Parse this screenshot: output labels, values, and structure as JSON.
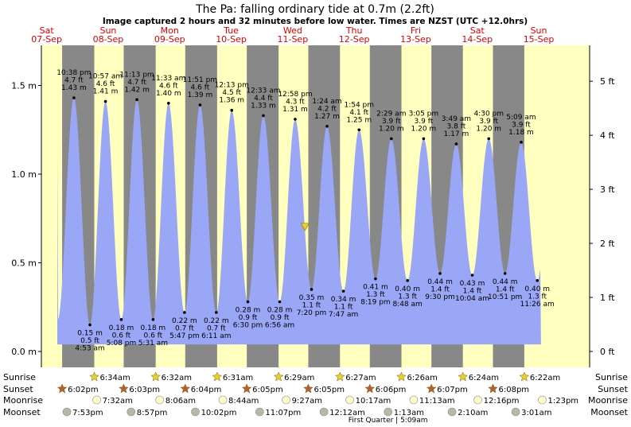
{
  "header": {
    "title": "The Pa: falling  ordinary tide at 0.7m (2.2ft)",
    "subtitle": "Image captured 2 hours and 32 minutes before low water. Times are NZST (UTC +12.0hrs)"
  },
  "chart_data": {
    "type": "area",
    "title": "The Pa: falling  ordinary tide at 0.7m (2.2ft)",
    "xlabel": "",
    "ylabel": "",
    "y_left_unit": "m",
    "y_right_unit": "ft",
    "ylim_m": [
      -0.05,
      1.72
    ],
    "y_left_ticks": [
      {
        "v": 0.0,
        "label": "0.0 m"
      },
      {
        "v": 0.5,
        "label": "0.5 m"
      },
      {
        "v": 1.0,
        "label": "1.0 m"
      },
      {
        "v": 1.5,
        "label": "1.5 m"
      }
    ],
    "y_right_ticks": [
      {
        "v": 0,
        "label": "0 ft"
      },
      {
        "v": 1,
        "label": "1 ft"
      },
      {
        "v": 2,
        "label": "2 ft"
      },
      {
        "v": 3,
        "label": "3 ft"
      },
      {
        "v": 4,
        "label": "4 ft"
      },
      {
        "v": 5,
        "label": "5 ft"
      }
    ],
    "x_start_day": 0,
    "x_end_day": 8.4,
    "days": [
      {
        "dow": "Sat",
        "date": "07-Sep"
      },
      {
        "dow": "Sun",
        "date": "08-Sep"
      },
      {
        "dow": "Mon",
        "date": "09-Sep"
      },
      {
        "dow": "Tue",
        "date": "10-Sep"
      },
      {
        "dow": "Wed",
        "date": "11-Sep"
      },
      {
        "dow": "Thu",
        "date": "12-Sep"
      },
      {
        "dow": "Fri",
        "date": "13-Sep"
      },
      {
        "dow": "Sat",
        "date": "14-Sep"
      },
      {
        "dow": "Sun",
        "date": "15-Sep"
      }
    ],
    "tides": [
      {
        "type": "high",
        "day": 0,
        "time": "10:38 pm",
        "ft": "4.7 ft",
        "m": 1.43,
        "m_label": "1.43 m"
      },
      {
        "type": "low",
        "day": 1,
        "time": "4:53 am",
        "ft": "0.5 ft",
        "m": 0.15,
        "m_label": "0.15 m"
      },
      {
        "type": "high",
        "day": 1,
        "time": "10:57 am",
        "ft": "4.6 ft",
        "m": 1.41,
        "m_label": "1.41 m"
      },
      {
        "type": "low",
        "day": 1,
        "time": "5:08 pm",
        "ft": "0.6 ft",
        "m": 0.18,
        "m_label": "0.18 m"
      },
      {
        "type": "high",
        "day": 1,
        "time": "11:13 pm",
        "ft": "4.7 ft",
        "m": 1.42,
        "m_label": "1.42 m"
      },
      {
        "type": "low",
        "day": 2,
        "time": "5:31 am",
        "ft": "0.6 ft",
        "m": 0.18,
        "m_label": "0.18 m"
      },
      {
        "type": "high",
        "day": 2,
        "time": "11:33 am",
        "ft": "4.6 ft",
        "m": 1.4,
        "m_label": "1.40 m"
      },
      {
        "type": "low",
        "day": 2,
        "time": "5:47 pm",
        "ft": "0.7 ft",
        "m": 0.22,
        "m_label": "0.22 m"
      },
      {
        "type": "high",
        "day": 2,
        "time": "11:51 pm",
        "ft": "4.6 ft",
        "m": 1.39,
        "m_label": "1.39 m"
      },
      {
        "type": "low",
        "day": 3,
        "time": "6:11 am",
        "ft": "0.7 ft",
        "m": 0.22,
        "m_label": "0.22 m"
      },
      {
        "type": "high",
        "day": 3,
        "time": "12:13 pm",
        "ft": "4.5 ft",
        "m": 1.36,
        "m_label": "1.36 m"
      },
      {
        "type": "low",
        "day": 3,
        "time": "6:30 pm",
        "ft": "0.9 ft",
        "m": 0.28,
        "m_label": "0.28 m"
      },
      {
        "type": "high",
        "day": 4,
        "time": "12:33 am",
        "ft": "4.4 ft",
        "m": 1.33,
        "m_label": "1.33 m"
      },
      {
        "type": "low",
        "day": 4,
        "time": "6:56 am",
        "ft": "0.9 ft",
        "m": 0.28,
        "m_label": "0.28 m"
      },
      {
        "type": "high",
        "day": 4,
        "time": "12:58 pm",
        "ft": "4.3 ft",
        "m": 1.31,
        "m_label": "1.31 m"
      },
      {
        "type": "low",
        "day": 4,
        "time": "7:20 pm",
        "ft": "1.1 ft",
        "m": 0.35,
        "m_label": "0.35 m"
      },
      {
        "type": "high",
        "day": 5,
        "time": "1:24 am",
        "ft": "4.2 ft",
        "m": 1.27,
        "m_label": "1.27 m"
      },
      {
        "type": "low",
        "day": 5,
        "time": "7:47 am",
        "ft": "1.1 ft",
        "m": 0.34,
        "m_label": "0.34 m"
      },
      {
        "type": "high",
        "day": 5,
        "time": "1:54 pm",
        "ft": "4.1 ft",
        "m": 1.25,
        "m_label": "1.25 m"
      },
      {
        "type": "low",
        "day": 5,
        "time": "8:19 pm",
        "ft": "1.3 ft",
        "m": 0.41,
        "m_label": "0.41 m"
      },
      {
        "type": "high",
        "day": 6,
        "time": "2:29 am",
        "ft": "3.9 ft",
        "m": 1.2,
        "m_label": "1.20 m"
      },
      {
        "type": "low",
        "day": 6,
        "time": "8:48 am",
        "ft": "1.3 ft",
        "m": 0.4,
        "m_label": "0.40 m"
      },
      {
        "type": "high",
        "day": 6,
        "time": "3:05 pm",
        "ft": "3.9 ft",
        "m": 1.2,
        "m_label": "1.20 m"
      },
      {
        "type": "low",
        "day": 6,
        "time": "9:30 pm",
        "ft": "1.4 ft",
        "m": 0.44,
        "m_label": "0.44 m"
      },
      {
        "type": "high",
        "day": 7,
        "time": "3:49 am",
        "ft": "3.8 ft",
        "m": 1.17,
        "m_label": "1.17 m"
      },
      {
        "type": "low",
        "day": 7,
        "time": "10:04 am",
        "ft": "1.4 ft",
        "m": 0.43,
        "m_label": "0.43 m"
      },
      {
        "type": "high",
        "day": 7,
        "time": "4:30 pm",
        "ft": "3.9 ft",
        "m": 1.2,
        "m_label": "1.20 m"
      },
      {
        "type": "low",
        "day": 7,
        "time": "10:51 pm",
        "ft": "1.4 ft",
        "m": 0.44,
        "m_label": "0.44 m"
      },
      {
        "type": "high",
        "day": 8,
        "time": "5:09 am",
        "ft": "3.9 ft",
        "m": 1.18,
        "m_label": "1.18 m"
      },
      {
        "type": "low",
        "day": 8,
        "time": "11:26 am",
        "ft": "1.3 ft",
        "m": 0.4,
        "m_label": "0.40 m"
      }
    ],
    "current": {
      "day": 4,
      "time": "4:48 pm",
      "m": 0.7
    },
    "daylight": [
      {
        "day": 1,
        "sunrise": "6:34am",
        "sunset": "6:03pm"
      },
      {
        "day": 2,
        "sunrise": "6:32am",
        "sunset": "6:04pm"
      },
      {
        "day": 3,
        "sunrise": "6:31am",
        "sunset": "6:05pm"
      },
      {
        "day": 4,
        "sunrise": "6:29am",
        "sunset": "6:05pm"
      },
      {
        "day": 5,
        "sunrise": "6:27am",
        "sunset": "6:06pm"
      },
      {
        "day": 6,
        "sunrise": "6:26am",
        "sunset": "6:07pm"
      },
      {
        "day": 7,
        "sunrise": "6:24am",
        "sunset": "6:08pm"
      },
      {
        "day": 8,
        "sunrise": "6:22am",
        "sunset": ""
      }
    ],
    "sunsets_extra": [
      {
        "day": 0,
        "time": "6:02pm"
      }
    ],
    "moonrise": [
      {
        "day": 1,
        "time": "7:32am"
      },
      {
        "day": 2,
        "time": "8:06am"
      },
      {
        "day": 3,
        "time": "8:44am"
      },
      {
        "day": 4,
        "time": "9:27am"
      },
      {
        "day": 5,
        "time": "10:17am"
      },
      {
        "day": 6,
        "time": "11:13am"
      },
      {
        "day": 7,
        "time": "12:16pm"
      },
      {
        "day": 8,
        "time": "1:23pm"
      }
    ],
    "moonset": [
      {
        "day": 0,
        "time": "7:53pm"
      },
      {
        "day": 1,
        "time": "8:57pm"
      },
      {
        "day": 2,
        "time": "10:02pm"
      },
      {
        "day": 3,
        "time": "11:07pm"
      },
      {
        "day": 5,
        "time": "12:12am"
      },
      {
        "day": 6,
        "time": "1:13am"
      },
      {
        "day": 7,
        "time": "2:10am"
      },
      {
        "day": 8,
        "time": "3:01am"
      }
    ],
    "moon_phase": {
      "label": "First Quarter",
      "time": "5:09am"
    },
    "row_labels": {
      "sunrise": "Sunrise",
      "sunset": "Sunset",
      "moonrise": "Moonrise",
      "moonset": "Moonset"
    }
  },
  "colors": {
    "day_bg": "#ffffc0",
    "night_bg": "#888888",
    "water": "#9aa6f6",
    "day_label": "#dd0000",
    "sun_icon": "#e8d030",
    "sunset_icon": "#b0603a",
    "moonrise_icon": "#ffffc8",
    "moonset_icon": "#b8b8a8",
    "marker": "#e8d030"
  }
}
